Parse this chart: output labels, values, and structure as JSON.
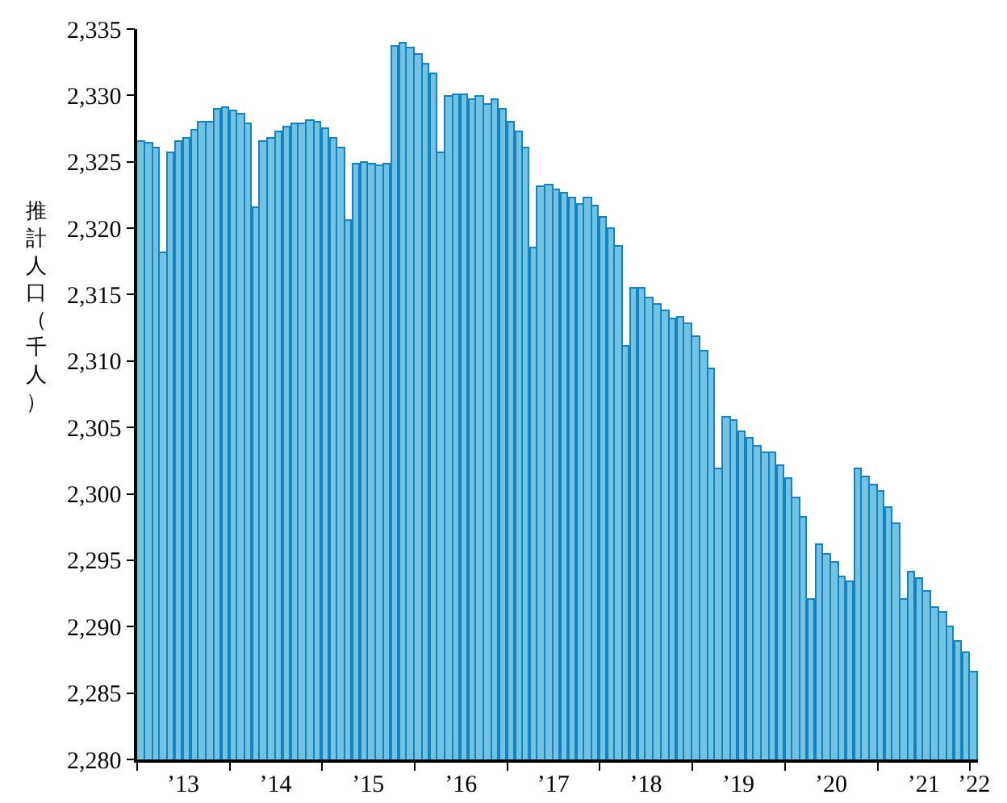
{
  "chart_data": {
    "type": "bar",
    "ylabel": "推計人口（千人）",
    "x": [
      "2013-01",
      "2013-02",
      "2013-03",
      "2013-04",
      "2013-05",
      "2013-06",
      "2013-07",
      "2013-08",
      "2013-09",
      "2013-10",
      "2013-11",
      "2013-12",
      "2014-01",
      "2014-02",
      "2014-03",
      "2014-04",
      "2014-05",
      "2014-06",
      "2014-07",
      "2014-08",
      "2014-09",
      "2014-10",
      "2014-11",
      "2014-12",
      "2015-01",
      "2015-02",
      "2015-03",
      "2015-04",
      "2015-05",
      "2015-06",
      "2015-07",
      "2015-08",
      "2015-09",
      "2015-10",
      "2015-11",
      "2015-12",
      "2016-01",
      "2016-02",
      "2016-03",
      "2016-04",
      "2016-05",
      "2016-06",
      "2016-07",
      "2016-08",
      "2016-09",
      "2016-10",
      "2016-11",
      "2016-12",
      "2017-01",
      "2017-02",
      "2017-03",
      "2017-04",
      "2017-05",
      "2017-06",
      "2017-07",
      "2017-08",
      "2017-09",
      "2017-10",
      "2017-11",
      "2017-12",
      "2018-01",
      "2018-02",
      "2018-03",
      "2018-04",
      "2018-05",
      "2018-06",
      "2018-07",
      "2018-08",
      "2018-09",
      "2018-10",
      "2018-11",
      "2018-12",
      "2019-01",
      "2019-02",
      "2019-03",
      "2019-04",
      "2019-05",
      "2019-06",
      "2019-07",
      "2019-08",
      "2019-09",
      "2019-10",
      "2019-11",
      "2019-12",
      "2020-01",
      "2020-02",
      "2020-03",
      "2020-04",
      "2020-05",
      "2020-06",
      "2020-07",
      "2020-08",
      "2020-09",
      "2020-10",
      "2020-11",
      "2020-12",
      "2021-01",
      "2021-02",
      "2021-03",
      "2021-04",
      "2021-05",
      "2021-06",
      "2021-07",
      "2021-08",
      "2021-09",
      "2021-10",
      "2021-11",
      "2021-12",
      "2022-01"
    ],
    "series": [
      {
        "color": "#74c2e1",
        "values": [
          2326.5,
          2326.4,
          2326.0,
          2318.1,
          2325.6,
          2326.5,
          2326.7,
          2327.3,
          2327.9,
          2327.9,
          2328.9,
          2329.1,
          2328.8,
          2328.6,
          2327.8,
          2321.5,
          2326.5,
          2326.8,
          2327.2,
          2327.6,
          2327.8,
          2327.8,
          2328.1,
          2328.0,
          2327.5,
          2326.7,
          2326.0,
          2320.6,
          2324.8,
          2324.9,
          2324.8,
          2324.7,
          2324.8,
          2333.7,
          2333.9,
          2333.6,
          2333.1,
          2332.3,
          2331.6,
          2325.7,
          2329.9,
          2330.0,
          2330.0,
          2329.6,
          2329.9,
          2329.3,
          2329.6,
          2328.9,
          2328.0,
          2327.2,
          2326.0,
          2318.5,
          2323.1,
          2323.2,
          2322.8,
          2322.6,
          2322.3,
          2321.8,
          2322.2,
          2321.7,
          2320.8,
          2319.9,
          2318.6,
          2311.1,
          2315.4,
          2315.5,
          2314.7,
          2314.2,
          2313.7,
          2313.2,
          2313.3,
          2312.8,
          2311.8,
          2310.7,
          2309.4,
          2301.9,
          2305.7,
          2305.5,
          2304.7,
          2304.2,
          2303.5,
          2303.1,
          2303.1,
          2302.1,
          2301.1,
          2299.7,
          2298.2,
          2292.0,
          2296.1,
          2295.4,
          2294.8,
          2293.7,
          2293.4,
          2301.9,
          2301.2,
          2300.7,
          2300.2,
          2299.0,
          2297.7,
          2292.0,
          2294.1,
          2293.6,
          2292.6,
          2291.4,
          2291.0,
          2290.0,
          2288.9,
          2288.0,
          2286.5
        ]
      }
    ],
    "xlim": [
      "2012-12-16T12:00",
      "2022-01-16T12:00"
    ],
    "xticks": [
      {
        "value": "2012-12-16T12:00",
        "label": null
      },
      {
        "value": "2013-06-16",
        "label": "’13"
      },
      {
        "value": "2013-12-16T12:00",
        "label": null
      },
      {
        "value": "2014-06-16",
        "label": "’14"
      },
      {
        "value": "2014-12-16T12:00",
        "label": null
      },
      {
        "value": "2015-06-16",
        "label": "’15"
      },
      {
        "value": "2015-12-16T12:00",
        "label": null
      },
      {
        "value": "2016-06-16",
        "label": "’16"
      },
      {
        "value": "2016-12-16T12:00",
        "label": null
      },
      {
        "value": "2017-06-16",
        "label": "’17"
      },
      {
        "value": "2017-12-16T12:00",
        "label": null
      },
      {
        "value": "2018-06-16",
        "label": "’18"
      },
      {
        "value": "2018-12-16T12:00",
        "label": null
      },
      {
        "value": "2019-06-16",
        "label": "’19"
      },
      {
        "value": "2019-12-16T12:00",
        "label": null
      },
      {
        "value": "2020-06-16",
        "label": "’20"
      },
      {
        "value": "2020-12-16T12:00",
        "label": null
      },
      {
        "value": "2021-06-16",
        "label": "’21"
      },
      {
        "value": "2021-12-16T12:00",
        "label": null
      },
      {
        "value": "2022-01",
        "label": "’22"
      }
    ],
    "ylim": [
      2280,
      2335
    ],
    "yticks": [
      {
        "value": 2280,
        "label": "2,280"
      },
      {
        "value": 2285,
        "label": "2,285"
      },
      {
        "value": 2290,
        "label": "2,290"
      },
      {
        "value": 2295,
        "label": "2,295"
      },
      {
        "value": 2300,
        "label": "2,300"
      },
      {
        "value": 2305,
        "label": "2,305"
      },
      {
        "value": 2310,
        "label": "2,310"
      },
      {
        "value": 2315,
        "label": "2,315"
      },
      {
        "value": 2320,
        "label": "2,320"
      },
      {
        "value": 2325,
        "label": "2,325"
      },
      {
        "value": 2330,
        "label": "2,330"
      },
      {
        "value": 2335,
        "label": "2,335"
      }
    ],
    "grid": false
  }
}
